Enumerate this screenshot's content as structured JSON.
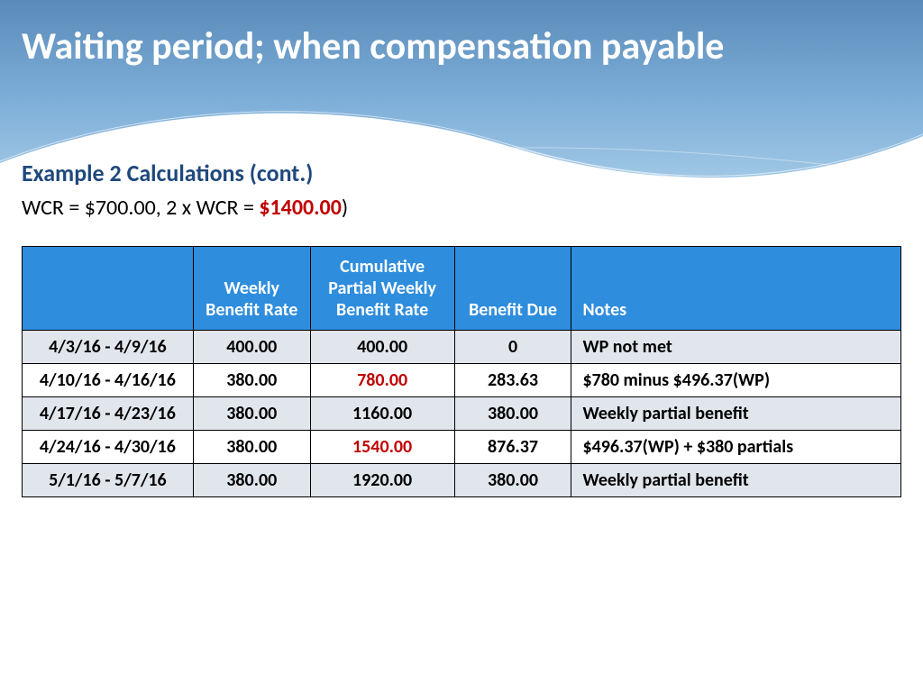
{
  "title": "Waiting period; when compensation payable",
  "subtitle": "Example 2 Calculations (cont.)",
  "wcr_line_prefix": "WCR = $700.00, 2 x WCR = ",
  "wcr_amount": "$1400.00",
  "wcr_line_suffix": ")",
  "colors": {
    "header_gradient_top": "#5a8ab8",
    "header_gradient_mid": "#7daed8",
    "header_gradient_bot": "#a8cde8",
    "title_color": "#ffffff",
    "subtitle_color": "#1f497d",
    "highlight_color": "#c00000",
    "table_header_bg": "#2e8ddd",
    "table_header_fg": "#ffffff",
    "row_even_bg": "#e1e5ec",
    "row_odd_bg": "#ffffff",
    "border_color": "#000000"
  },
  "table": {
    "columns": [
      "",
      "Weekly Benefit Rate",
      "Cumulative Partial Weekly Benefit Rate",
      "Benefit Due",
      "Notes"
    ],
    "rows": [
      {
        "date": "4/3/16 - 4/9/16",
        "wbr": "400.00",
        "cum": "400.00",
        "cum_hl": false,
        "due": "0",
        "notes": "WP not met"
      },
      {
        "date": "4/10/16 - 4/16/16",
        "wbr": "380.00",
        "cum": "780.00",
        "cum_hl": true,
        "due": "283.63",
        "notes": "$780 minus $496.37(WP)"
      },
      {
        "date": "4/17/16 - 4/23/16",
        "wbr": "380.00",
        "cum": "1160.00",
        "cum_hl": false,
        "due": "380.00",
        "notes": "Weekly partial benefit"
      },
      {
        "date": "4/24/16 - 4/30/16",
        "wbr": "380.00",
        "cum": "1540.00",
        "cum_hl": true,
        "due": "876.37",
        "notes": "$496.37(WP) + $380 partials"
      },
      {
        "date": "5/1/16 - 5/7/16",
        "wbr": "380.00",
        "cum": "1920.00",
        "cum_hl": false,
        "due": "380.00",
        "notes": "Weekly partial benefit"
      }
    ]
  }
}
